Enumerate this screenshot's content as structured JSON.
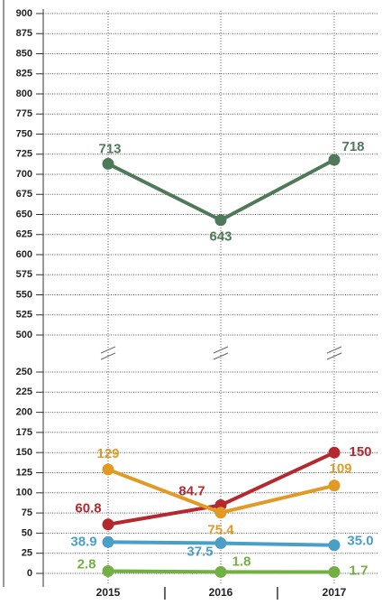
{
  "chart_data": [
    {
      "type": "line",
      "ylim": [
        500,
        900
      ],
      "yticks": [
        500,
        525,
        550,
        575,
        600,
        625,
        650,
        675,
        700,
        725,
        750,
        775,
        800,
        825,
        850,
        875,
        900
      ],
      "grid": true,
      "series": [
        {
          "color": "#4f7a5a",
          "values": [
            713,
            643,
            718
          ]
        }
      ]
    },
    {
      "type": "line",
      "categories": [
        "2015",
        "2016",
        "2017"
      ],
      "ylim": [
        0,
        250
      ],
      "yticks": [
        0,
        25,
        50,
        75,
        100,
        125,
        150,
        175,
        200,
        225,
        250
      ],
      "grid": true,
      "series": [
        {
          "color": "#b5282e",
          "values": [
            60.8,
            84.7,
            150
          ]
        },
        {
          "color": "#e09a25",
          "values": [
            129,
            75.4,
            109
          ]
        },
        {
          "color": "#4a9fc7",
          "values": [
            38.9,
            37.5,
            35
          ],
          "value_labels": [
            "38.9",
            "37.5",
            "35.0"
          ]
        },
        {
          "color": "#72b043",
          "values": [
            2.8,
            1.8,
            1.7
          ]
        }
      ]
    }
  ]
}
